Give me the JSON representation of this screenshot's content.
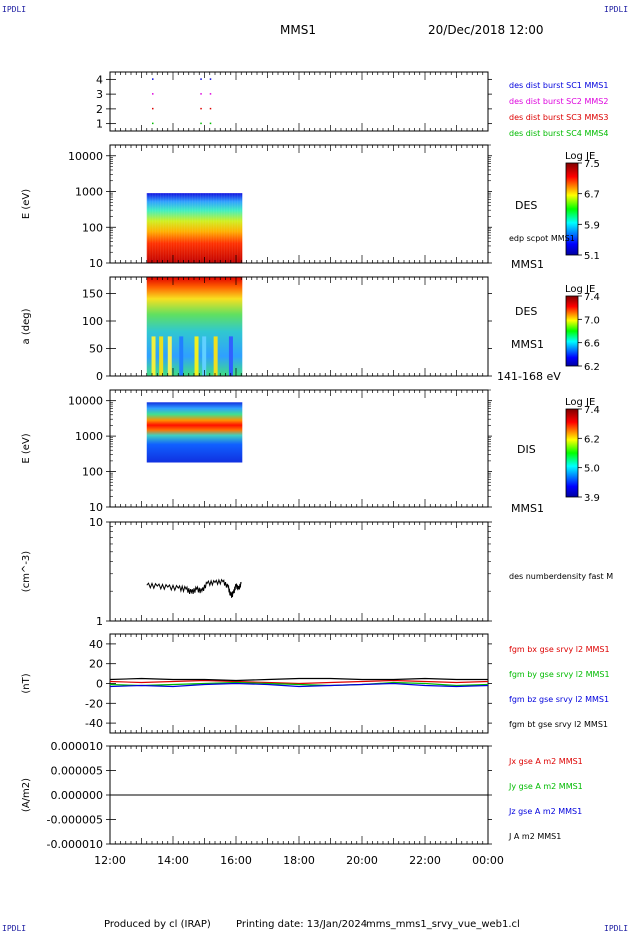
{
  "corners": {
    "tl": "IPDLI",
    "tr": "IPDLI",
    "bl": "IPDLI",
    "br": "IPDLI"
  },
  "header": {
    "title": "MMS1",
    "date": "20/Dec/2018 12:00"
  },
  "footer": {
    "produced": "Produced by cl (IRAP)",
    "printed": "Printing date: 13/Jan/2024",
    "file": "mms_mms1_srvy_vue_web1.cl"
  },
  "colors": {
    "blue": "#0000dd",
    "magenta": "#dd00dd",
    "red": "#dd0000",
    "green": "#00bb00",
    "black": "#000000"
  },
  "chart_data": [
    {
      "type": "scatter",
      "title": "",
      "ylim": [
        0.5,
        4.5
      ],
      "yticks": [
        "1",
        "2",
        "3",
        "4"
      ],
      "series": [
        {
          "name": "des dist burst SC1 MMS1",
          "color": "blue",
          "y": 4,
          "x": [
            "13:20",
            "14:52",
            "15:10"
          ]
        },
        {
          "name": "des dist burst SC2 MMS2",
          "color": "magenta",
          "y": 3,
          "x": [
            "13:20",
            "14:52",
            "15:10"
          ]
        },
        {
          "name": "des dist burst SC3 MMS3",
          "color": "red",
          "y": 2,
          "x": [
            "13:20",
            "14:52",
            "15:10"
          ]
        },
        {
          "name": "des dist burst SC4 MMS4",
          "color": "green",
          "y": 1,
          "x": [
            "13:20",
            "14:52",
            "15:10"
          ]
        }
      ]
    },
    {
      "type": "heatmap",
      "ylabel": "E (eV)",
      "yscale": "log",
      "ylim": [
        10,
        20000
      ],
      "yticks": [
        "10",
        "100",
        "1000",
        "10000"
      ],
      "xrange": [
        "13:10",
        "16:12"
      ],
      "data_yrange": [
        10,
        900
      ],
      "instrument": "DES",
      "overlay": "edp scpot MMS1",
      "bottom_label": "MMS1",
      "colorbar": {
        "title": "Log JE",
        "ticks": [
          "7.5",
          "6.7",
          "5.9",
          "5.1"
        ]
      }
    },
    {
      "type": "heatmap",
      "ylabel": "a (deg)",
      "ylim": [
        0,
        180
      ],
      "yticks": [
        "0",
        "50",
        "100",
        "150"
      ],
      "xrange": [
        "13:10",
        "16:12"
      ],
      "instrument": "DES",
      "sc_label": "MMS1",
      "energy_label": "141-168 eV",
      "colorbar": {
        "title": "Log JE",
        "ticks": [
          "7.4",
          "7.0",
          "6.6",
          "6.2"
        ]
      }
    },
    {
      "type": "heatmap",
      "ylabel": "E (eV)",
      "yscale": "log",
      "ylim": [
        10,
        20000
      ],
      "yticks": [
        "10",
        "100",
        "1000",
        "10000"
      ],
      "xrange": [
        "13:10",
        "16:12"
      ],
      "data_yrange": [
        180,
        9000
      ],
      "instrument": "DIS",
      "bottom_label": "MMS1",
      "colorbar": {
        "title": "Log JE",
        "ticks": [
          "7.4",
          "6.2",
          "5.0",
          "3.9"
        ]
      }
    },
    {
      "type": "line",
      "ylabel": "(cm^-3)",
      "yscale": "log",
      "ylim": [
        1,
        10
      ],
      "yticks": [
        "1",
        "10"
      ],
      "series": [
        {
          "name": "des numberdensity fast M",
          "color": "black",
          "x": [
            "13:10",
            "13:30",
            "13:50",
            "14:10",
            "14:25",
            "14:35",
            "14:45",
            "14:55",
            "15:05",
            "15:20",
            "15:35",
            "15:45",
            "15:50",
            "15:55",
            "16:00",
            "16:05",
            "16:10"
          ],
          "y": [
            2.3,
            2.25,
            2.2,
            2.15,
            2.1,
            1.95,
            2.1,
            2.0,
            2.4,
            2.45,
            2.5,
            2.2,
            1.8,
            1.9,
            2.3,
            2.1,
            2.4
          ]
        }
      ]
    },
    {
      "type": "line",
      "ylabel": "(nT)",
      "ylim": [
        -50,
        50
      ],
      "yticks": [
        "-40",
        "-20",
        "0",
        "20",
        "40"
      ],
      "x": [
        "12:00",
        "13:00",
        "14:00",
        "15:00",
        "16:00",
        "17:00",
        "18:00",
        "19:00",
        "20:00",
        "21:00",
        "22:00",
        "23:00",
        "00:00"
      ],
      "series": [
        {
          "name": "fgm bx gse srvy l2 MMS1",
          "color": "red",
          "values": [
            2,
            1,
            2,
            3,
            2,
            1,
            0,
            1,
            2,
            3,
            2,
            1,
            2
          ]
        },
        {
          "name": "fgm by gse srvy l2 MMS1",
          "color": "green",
          "values": [
            -1,
            -2,
            -1,
            0,
            1,
            0,
            -1,
            -2,
            -1,
            1,
            0,
            -2,
            -1
          ]
        },
        {
          "name": "fgm bz gse srvy l2 MMS1",
          "color": "blue",
          "values": [
            -3,
            -2,
            -3,
            -1,
            0,
            -1,
            -3,
            -2,
            -1,
            0,
            -2,
            -3,
            -2
          ]
        },
        {
          "name": "fgm bt gse srvy l2 MMS1",
          "color": "black",
          "values": [
            4,
            5,
            4,
            4,
            3,
            4,
            5,
            5,
            4,
            4,
            5,
            4,
            4
          ]
        }
      ]
    },
    {
      "type": "line",
      "ylabel": "(A/m2)",
      "ylim": [
        -1e-05,
        1e-05
      ],
      "yticks": [
        "-0.000010",
        "-0.000005",
        "0.000000",
        "0.000005",
        "0.000010"
      ],
      "xlabels": [
        "12:00",
        "14:00",
        "16:00",
        "18:00",
        "20:00",
        "22:00",
        "00:00"
      ],
      "series": [
        {
          "name": "Jx gse A m2 MMS1",
          "color": "red"
        },
        {
          "name": "Jy gse A m2 MMS1",
          "color": "green"
        },
        {
          "name": "Jz gse A m2 MMS1",
          "color": "blue"
        },
        {
          "name": "J A m2 MMS1",
          "color": "black"
        }
      ]
    }
  ]
}
